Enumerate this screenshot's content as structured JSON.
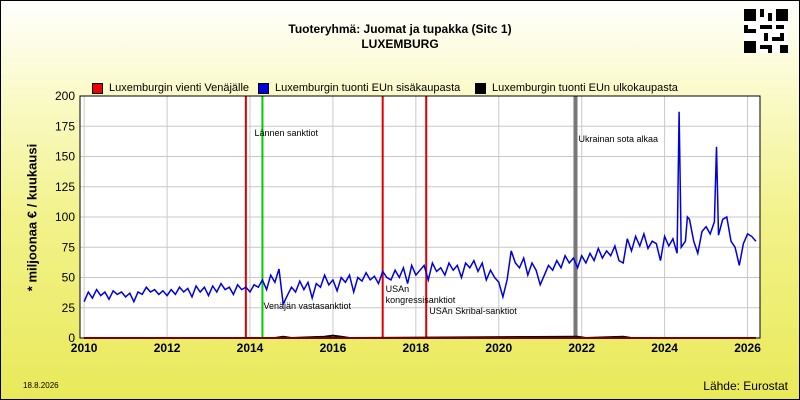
{
  "title_line1": "Tuoteryhmä: Juomat ja tupakka (Sitc 1)",
  "title_line2": "LUXEMBURG",
  "footer_date": "18.8.2026",
  "source": "Lähde: Eurostat",
  "colors": {
    "export_russia": "#ee0000",
    "import_eu_internal": "#0000dd",
    "import_eu_external": "#000000",
    "grid": "#c8c8c8",
    "sanction_red": "#dd0000",
    "sanction_green": "#00cc00",
    "war_gray": "#777777"
  },
  "chart_data": {
    "type": "line",
    "ylabel": "* miljoonaa € / kuukausi",
    "xlabel": "",
    "xlim": [
      2009.9,
      2026.3
    ],
    "ylim": [
      0,
      200
    ],
    "yticks": [
      0,
      25,
      50,
      75,
      100,
      125,
      150,
      175,
      200
    ],
    "xticks": [
      2010,
      2012,
      2014,
      2016,
      2018,
      2020,
      2022,
      2024,
      2026
    ],
    "grid": true,
    "legend_position": "top",
    "legend": [
      "Luxemburgin vienti Venäjälle",
      "Luxemburgin tuonti EUn sisäkaupasta",
      "Luxemburgin tuonti EUn ulkokaupasta"
    ],
    "series": [
      {
        "name": "Luxemburgin tuonti EUn sisäkaupasta",
        "points": [
          [
            2010.0,
            30
          ],
          [
            2010.1,
            38
          ],
          [
            2010.2,
            33
          ],
          [
            2010.3,
            40
          ],
          [
            2010.4,
            35
          ],
          [
            2010.5,
            38
          ],
          [
            2010.6,
            32
          ],
          [
            2010.7,
            39
          ],
          [
            2010.8,
            36
          ],
          [
            2010.9,
            38
          ],
          [
            2011.0,
            34
          ],
          [
            2011.1,
            37
          ],
          [
            2011.2,
            30
          ],
          [
            2011.3,
            38
          ],
          [
            2011.4,
            36
          ],
          [
            2011.5,
            42
          ],
          [
            2011.6,
            38
          ],
          [
            2011.7,
            40
          ],
          [
            2011.8,
            36
          ],
          [
            2011.9,
            39
          ],
          [
            2012.0,
            35
          ],
          [
            2012.1,
            40
          ],
          [
            2012.2,
            36
          ],
          [
            2012.3,
            42
          ],
          [
            2012.4,
            38
          ],
          [
            2012.5,
            41
          ],
          [
            2012.6,
            34
          ],
          [
            2012.7,
            43
          ],
          [
            2012.8,
            38
          ],
          [
            2012.9,
            42
          ],
          [
            2013.0,
            35
          ],
          [
            2013.1,
            43
          ],
          [
            2013.2,
            38
          ],
          [
            2013.3,
            45
          ],
          [
            2013.4,
            40
          ],
          [
            2013.5,
            42
          ],
          [
            2013.6,
            36
          ],
          [
            2013.7,
            44
          ],
          [
            2013.8,
            40
          ],
          [
            2013.9,
            42
          ],
          [
            2014.0,
            38
          ],
          [
            2014.1,
            44
          ],
          [
            2014.2,
            42
          ],
          [
            2014.3,
            48
          ],
          [
            2014.4,
            40
          ],
          [
            2014.5,
            52
          ],
          [
            2014.6,
            46
          ],
          [
            2014.7,
            57
          ],
          [
            2014.8,
            28
          ],
          [
            2014.9,
            35
          ],
          [
            2015.0,
            42
          ],
          [
            2015.1,
            38
          ],
          [
            2015.2,
            47
          ],
          [
            2015.3,
            40
          ],
          [
            2015.4,
            46
          ],
          [
            2015.5,
            33
          ],
          [
            2015.6,
            45
          ],
          [
            2015.7,
            42
          ],
          [
            2015.8,
            52
          ],
          [
            2015.9,
            44
          ],
          [
            2016.0,
            48
          ],
          [
            2016.1,
            39
          ],
          [
            2016.2,
            50
          ],
          [
            2016.3,
            46
          ],
          [
            2016.4,
            52
          ],
          [
            2016.5,
            38
          ],
          [
            2016.6,
            50
          ],
          [
            2016.7,
            47
          ],
          [
            2016.8,
            54
          ],
          [
            2016.9,
            48
          ],
          [
            2017.0,
            51
          ],
          [
            2017.1,
            45
          ],
          [
            2017.2,
            55
          ],
          [
            2017.3,
            50
          ],
          [
            2017.4,
            48
          ],
          [
            2017.5,
            56
          ],
          [
            2017.6,
            50
          ],
          [
            2017.7,
            58
          ],
          [
            2017.8,
            45
          ],
          [
            2017.9,
            60
          ],
          [
            2018.0,
            52
          ],
          [
            2018.1,
            56
          ],
          [
            2018.2,
            60
          ],
          [
            2018.3,
            48
          ],
          [
            2018.4,
            62
          ],
          [
            2018.5,
            55
          ],
          [
            2018.6,
            58
          ],
          [
            2018.7,
            52
          ],
          [
            2018.8,
            62
          ],
          [
            2018.9,
            56
          ],
          [
            2019.0,
            60
          ],
          [
            2019.1,
            50
          ],
          [
            2019.2,
            62
          ],
          [
            2019.3,
            58
          ],
          [
            2019.4,
            64
          ],
          [
            2019.5,
            55
          ],
          [
            2019.6,
            62
          ],
          [
            2019.7,
            48
          ],
          [
            2019.8,
            56
          ],
          [
            2019.9,
            50
          ],
          [
            2020.0,
            46
          ],
          [
            2020.1,
            34
          ],
          [
            2020.2,
            48
          ],
          [
            2020.3,
            72
          ],
          [
            2020.4,
            62
          ],
          [
            2020.5,
            58
          ],
          [
            2020.6,
            66
          ],
          [
            2020.7,
            52
          ],
          [
            2020.8,
            62
          ],
          [
            2020.9,
            56
          ],
          [
            2021.0,
            44
          ],
          [
            2021.1,
            52
          ],
          [
            2021.2,
            60
          ],
          [
            2021.3,
            56
          ],
          [
            2021.4,
            64
          ],
          [
            2021.5,
            58
          ],
          [
            2021.6,
            68
          ],
          [
            2021.7,
            62
          ],
          [
            2021.8,
            66
          ],
          [
            2021.9,
            58
          ],
          [
            2022.0,
            68
          ],
          [
            2022.1,
            62
          ],
          [
            2022.2,
            70
          ],
          [
            2022.3,
            64
          ],
          [
            2022.4,
            74
          ],
          [
            2022.5,
            66
          ],
          [
            2022.6,
            72
          ],
          [
            2022.7,
            68
          ],
          [
            2022.8,
            76
          ],
          [
            2022.9,
            64
          ],
          [
            2023.0,
            62
          ],
          [
            2023.1,
            82
          ],
          [
            2023.2,
            72
          ],
          [
            2023.3,
            84
          ],
          [
            2023.4,
            76
          ],
          [
            2023.5,
            86
          ],
          [
            2023.6,
            74
          ],
          [
            2023.7,
            80
          ],
          [
            2023.8,
            78
          ],
          [
            2023.9,
            64
          ],
          [
            2024.0,
            84
          ],
          [
            2024.1,
            76
          ],
          [
            2024.2,
            82
          ],
          [
            2024.3,
            70
          ],
          [
            2024.35,
            187
          ],
          [
            2024.4,
            75
          ],
          [
            2024.5,
            80
          ],
          [
            2024.55,
            100
          ],
          [
            2024.6,
            98
          ],
          [
            2024.7,
            80
          ],
          [
            2024.8,
            70
          ],
          [
            2024.9,
            88
          ],
          [
            2025.0,
            92
          ],
          [
            2025.1,
            86
          ],
          [
            2025.2,
            96
          ],
          [
            2025.25,
            158
          ],
          [
            2025.3,
            85
          ],
          [
            2025.4,
            98
          ],
          [
            2025.5,
            100
          ],
          [
            2025.6,
            80
          ],
          [
            2025.7,
            75
          ],
          [
            2025.8,
            60
          ],
          [
            2025.9,
            78
          ],
          [
            2026.0,
            86
          ],
          [
            2026.1,
            84
          ],
          [
            2026.2,
            80
          ]
        ]
      },
      {
        "name": "Luxemburgin tuonti EUn ulkokaupasta",
        "points": [
          [
            2010.0,
            0
          ],
          [
            2014.6,
            0
          ],
          [
            2014.8,
            1
          ],
          [
            2015.0,
            0
          ],
          [
            2015.8,
            1
          ],
          [
            2016.0,
            2
          ],
          [
            2016.2,
            1
          ],
          [
            2016.4,
            0
          ],
          [
            2021.9,
            1
          ],
          [
            2022.1,
            0
          ],
          [
            2023.0,
            1
          ],
          [
            2023.2,
            0
          ],
          [
            2026.2,
            0
          ]
        ]
      },
      {
        "name": "Luxemburgin vienti Venäjälle",
        "points": [
          [
            2010.0,
            0
          ],
          [
            2026.2,
            0
          ]
        ]
      }
    ],
    "annotations": [
      {
        "x": 2013.9,
        "label": "",
        "color": "red"
      },
      {
        "x": 2014.3,
        "label": "Lännen sanktiot",
        "color": "green"
      },
      {
        "x": 2014.3,
        "label": "Venäjän vastasanktiot",
        "color": "green"
      },
      {
        "x": 2017.2,
        "label": "USAn kongressisanktiot",
        "color": "red"
      },
      {
        "x": 2018.25,
        "label": "USAn Skribal-sanktiot",
        "color": "red"
      },
      {
        "x": 2021.85,
        "label": "Ukrainan sota alkaa",
        "color": "gray"
      }
    ]
  }
}
